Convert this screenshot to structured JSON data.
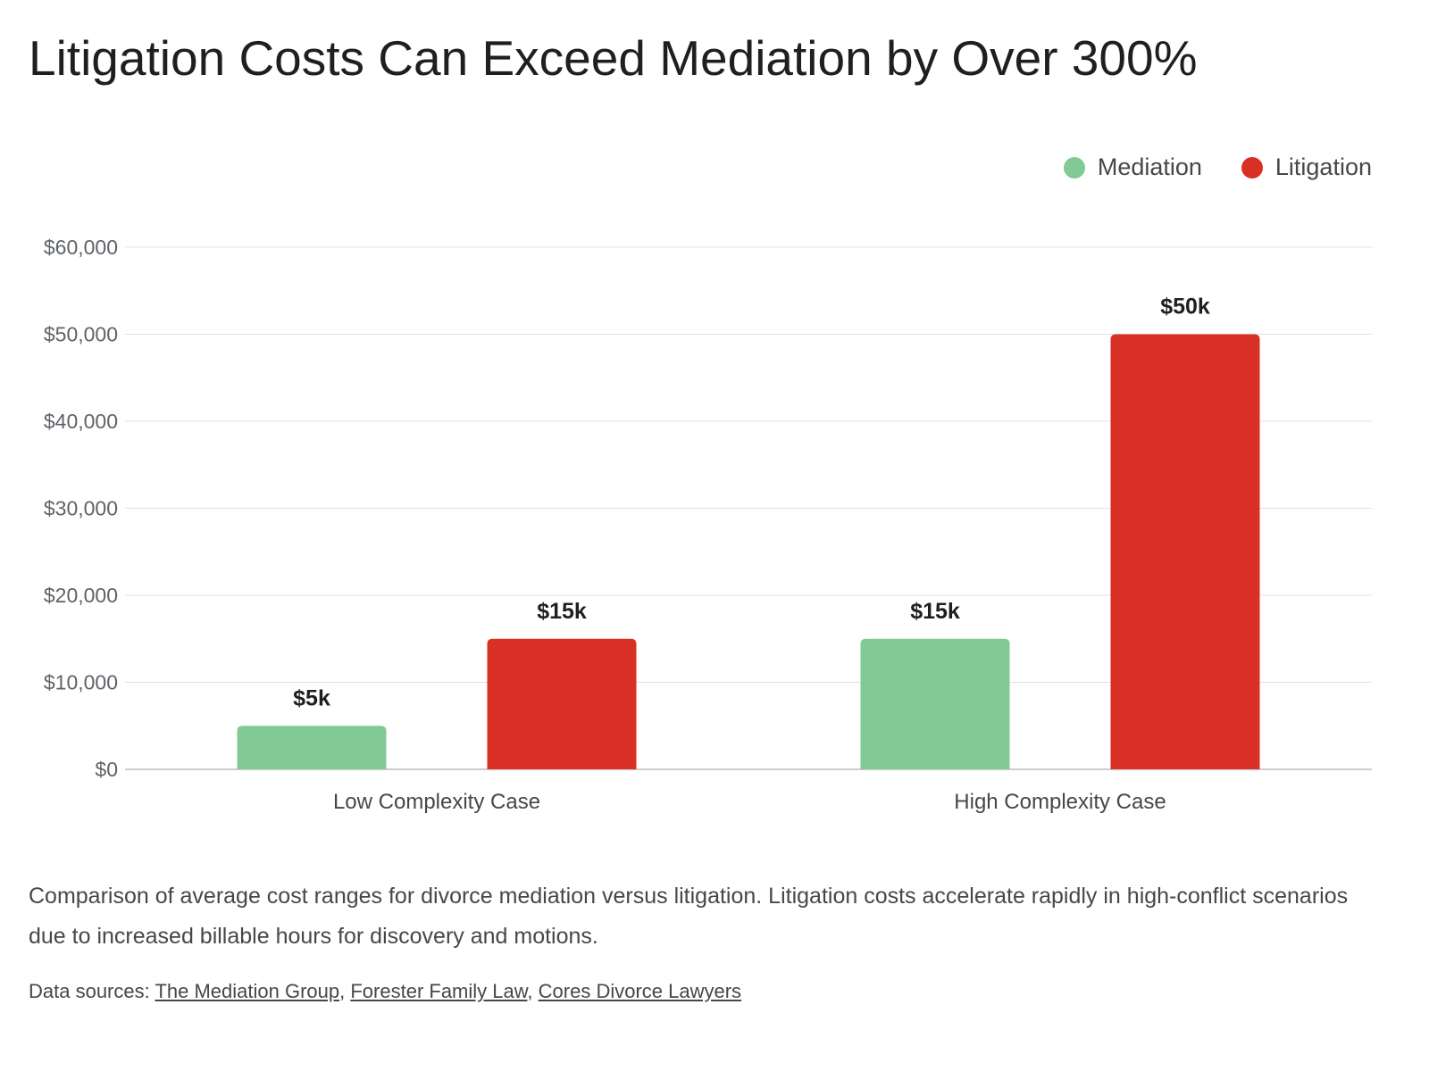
{
  "title": "Litigation Costs Can Exceed Mediation by Over 300%",
  "legend": [
    {
      "label": "Mediation",
      "color": "#81c995"
    },
    {
      "label": "Litigation",
      "color": "#d93025"
    }
  ],
  "caption": "Comparison of average cost ranges for divorce mediation versus litigation. Litigation costs accelerate rapidly in high-conflict scenarios due to increased billable hours for discovery and motions.",
  "sources": {
    "prefix": "Data sources: ",
    "links": [
      "The Mediation Group",
      "Forester Family Law",
      "Cores Divorce Lawyers"
    ],
    "separator": ", "
  },
  "chart_data": {
    "type": "bar",
    "title": "Litigation Costs Can Exceed Mediation by Over 300%",
    "categories": [
      "Low Complexity Case",
      "High Complexity Case"
    ],
    "series": [
      {
        "name": "Mediation",
        "color": "#81c995",
        "values": [
          5000,
          15000
        ],
        "labels": [
          "$5k",
          "$15k"
        ]
      },
      {
        "name": "Litigation",
        "color": "#d93025",
        "values": [
          15000,
          50000
        ],
        "labels": [
          "$15k",
          "$50k"
        ]
      }
    ],
    "ylim": [
      0,
      60000
    ],
    "yticks": [
      0,
      10000,
      20000,
      30000,
      40000,
      50000,
      60000
    ],
    "ytick_labels": [
      "$0",
      "$10,000",
      "$20,000",
      "$30,000",
      "$40,000",
      "$50,000",
      "$60,000"
    ],
    "xlabel": "",
    "ylabel": "",
    "grid": true,
    "legend_position": "top-right"
  }
}
